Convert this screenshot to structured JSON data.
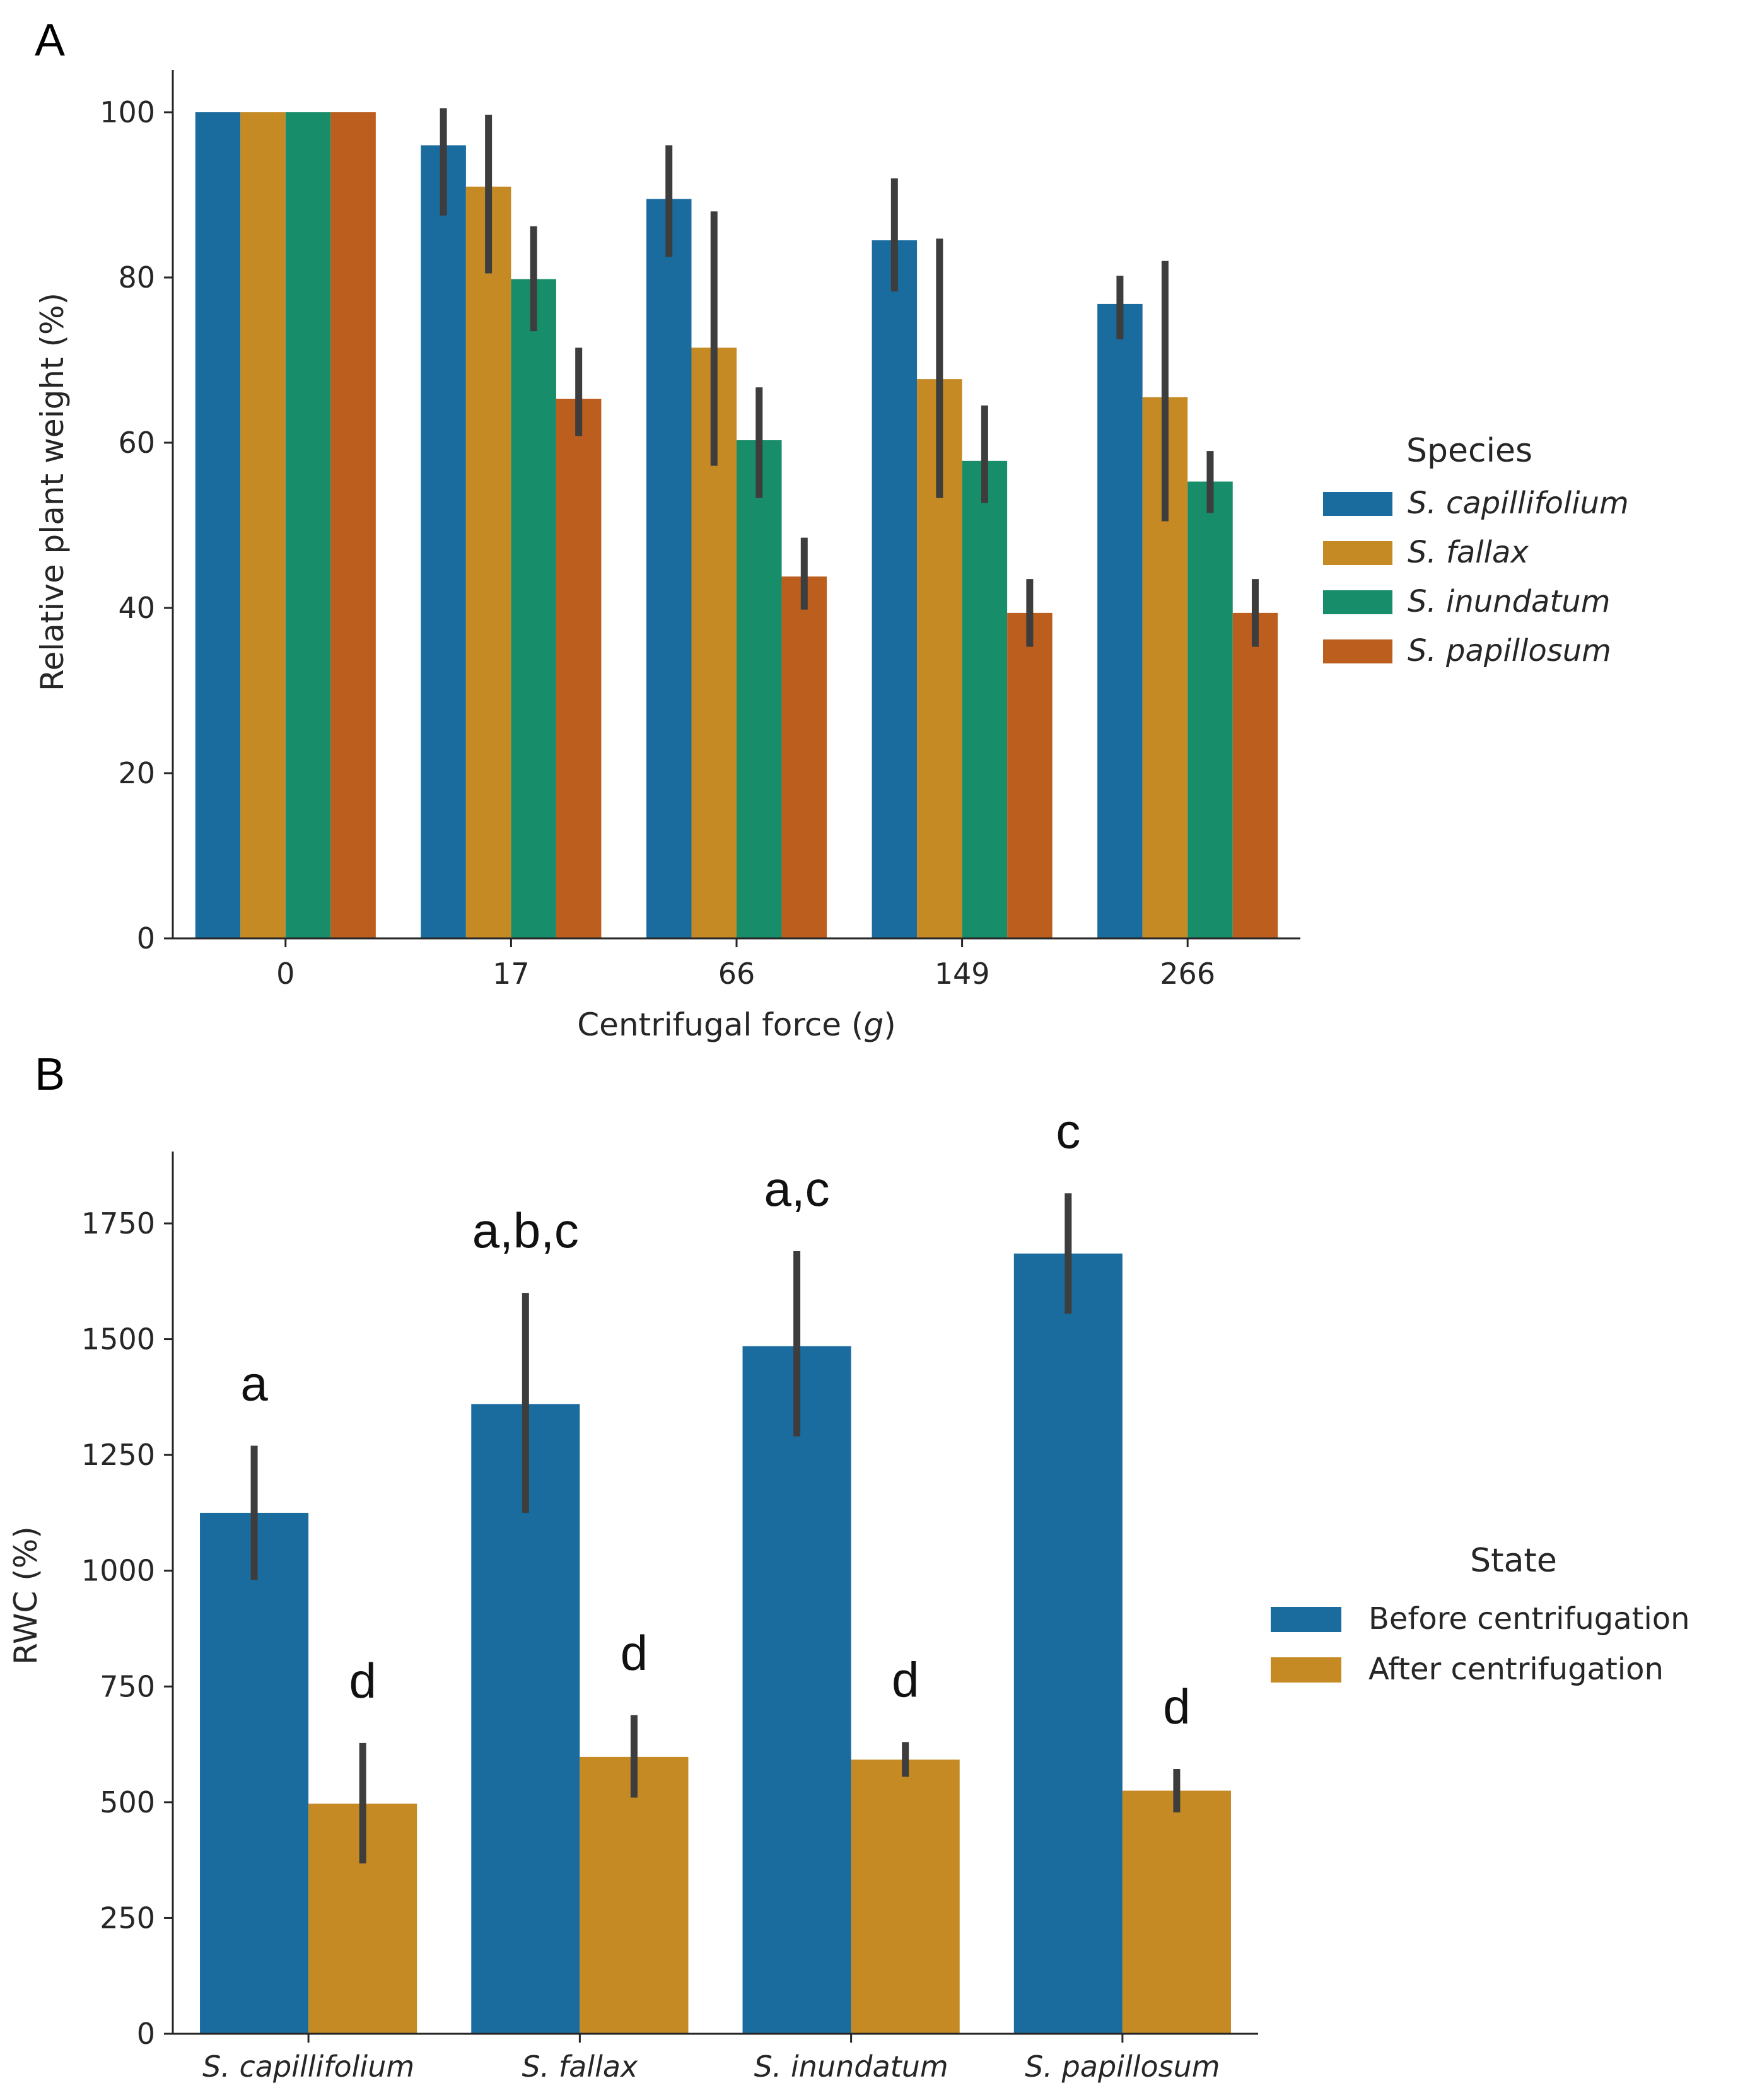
{
  "panels": {
    "a_label": "A",
    "b_label": "B"
  },
  "colors": {
    "blue": "#1a6c9f",
    "orange": "#c58a24",
    "green": "#188d6a",
    "vermilion": "#bb5e1e",
    "error_bar": "#3d3d3d"
  },
  "chart_data": [
    {
      "type": "bar",
      "panel": "A",
      "xlabel_prefix": "Centrifugal force (",
      "xlabel_var": "g",
      "xlabel_suffix": ")",
      "ylabel": "Relative plant weight (%)",
      "categories": [
        "0",
        "17",
        "66",
        "149",
        "266"
      ],
      "ylim": [
        0,
        100
      ],
      "yticks": [
        0,
        20,
        40,
        60,
        80,
        100
      ],
      "legend": {
        "title": "Species",
        "position": "center-right"
      },
      "series": [
        {
          "name": "S. capillifolium",
          "color": "#1a6c9f",
          "values": [
            100,
            96,
            89.5,
            84.5,
            76.8
          ],
          "err_low": [
            100,
            87.5,
            82.5,
            78.3,
            72.5
          ],
          "err_high": [
            100,
            100.5,
            96,
            92,
            80.2
          ]
        },
        {
          "name": "S. fallax",
          "color": "#c58a24",
          "values": [
            100,
            91,
            71.5,
            67.7,
            65.5
          ],
          "err_low": [
            100,
            80.5,
            57.2,
            53.3,
            50.5
          ],
          "err_high": [
            100,
            99.7,
            88,
            84.7,
            82
          ]
        },
        {
          "name": "S. inundatum",
          "color": "#188d6a",
          "values": [
            100,
            79.8,
            60.3,
            57.8,
            55.3
          ],
          "err_low": [
            100,
            73.5,
            53.3,
            52.7,
            51.5
          ],
          "err_high": [
            100,
            86.2,
            66.7,
            64.5,
            59
          ]
        },
        {
          "name": "S. papillosum",
          "color": "#bb5e1e",
          "values": [
            100,
            65.3,
            43.8,
            39.4,
            39.4
          ],
          "err_low": [
            100,
            60.8,
            39.8,
            35.3,
            35.3
          ],
          "err_high": [
            100,
            71.5,
            48.5,
            43.5,
            43.5
          ]
        }
      ]
    },
    {
      "type": "bar",
      "panel": "B",
      "xlabel": "",
      "ylabel": "RWC (%)",
      "categories": [
        "S. capillifolium",
        "S. fallax",
        "S. inundatum",
        "S. papillosum"
      ],
      "ylim": [
        0,
        1900
      ],
      "yticks": [
        0,
        250,
        500,
        750,
        1000,
        1250,
        1500,
        1750
      ],
      "legend": {
        "title": "State",
        "position": "center-right"
      },
      "series": [
        {
          "name": "Before centrifugation",
          "color": "#1a6c9f",
          "values": [
            1125,
            1360,
            1485,
            1685
          ],
          "err_low": [
            980,
            1125,
            1290,
            1555
          ],
          "err_high": [
            1270,
            1600,
            1690,
            1815
          ],
          "annotations": [
            "a",
            "a,b,c",
            "a,c",
            "c"
          ]
        },
        {
          "name": "After centrifugation",
          "color": "#c58a24",
          "values": [
            497,
            598,
            592,
            525
          ],
          "err_low": [
            368,
            510,
            555,
            478
          ],
          "err_high": [
            628,
            688,
            630,
            572
          ],
          "annotations": [
            "d",
            "d",
            "d",
            "d"
          ]
        }
      ]
    }
  ]
}
